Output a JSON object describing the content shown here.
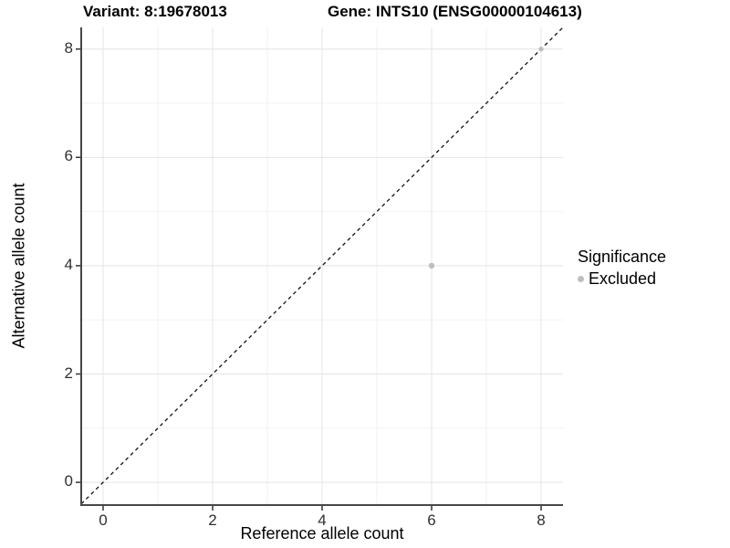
{
  "titles": {
    "variant": "Variant: 8:19678013",
    "gene": "Gene: INTS10 (ENSG00000104613)"
  },
  "legend": {
    "title": "Significance",
    "items": [
      {
        "label": "Excluded",
        "color": "#bebebe"
      }
    ]
  },
  "chart_data": {
    "type": "scatter",
    "title": "Variant: 8:19678013    Gene: INTS10 (ENSG00000104613)",
    "xlabel": "Reference allele count",
    "ylabel": "Alternative allele count",
    "xlim": [
      -0.4,
      8.4
    ],
    "ylim": [
      -0.42,
      8.4
    ],
    "x_ticks": [
      0,
      2,
      4,
      6,
      8
    ],
    "y_ticks": [
      0,
      2,
      4,
      6,
      8
    ],
    "x_minor": [
      1,
      3,
      5,
      7
    ],
    "y_minor": [
      1,
      3,
      5,
      7
    ],
    "grid": true,
    "legend_position": "right",
    "series": [
      {
        "name": "Excluded",
        "color": "#bebebe",
        "points": [
          {
            "x": 6,
            "y": 4,
            "size": 3.2
          },
          {
            "x": 8,
            "y": 8,
            "size": 2.7
          }
        ]
      }
    ],
    "reference_line": {
      "type": "identity y=x",
      "style": "dashed",
      "color": "#111111"
    }
  },
  "style_colors": {
    "grid_major": "#e4e4e4",
    "grid_minor": "#f2f2f2",
    "axis_line": "#474747",
    "tick_mark": "#333333",
    "tick_text": "#303030",
    "point_excluded": "#bebebe"
  }
}
